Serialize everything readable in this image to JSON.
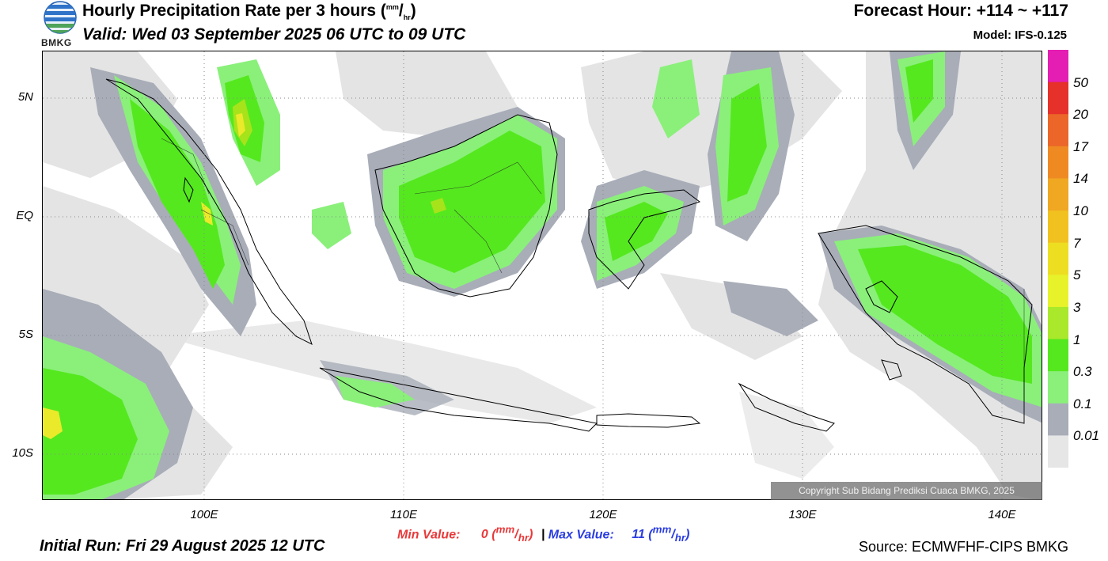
{
  "header": {
    "title_main": "Hourly Precipitation Rate per 3 hours (",
    "title_unit_top": "mm",
    "title_unit_bottom": "hr",
    "title_end": ")",
    "valid": "Valid: Wed 03 September 2025 06 UTC to 09 UTC",
    "forecast_hour": "Forecast Hour: +114 ~ +117",
    "model": "Model: IFS-0.125",
    "logo_text": "BMKG"
  },
  "map": {
    "lat_labels": [
      "5N",
      "EQ",
      "5S",
      "10S"
    ],
    "lon_labels": [
      "100E",
      "110E",
      "120E",
      "130E",
      "140E"
    ],
    "colors": {
      "light_gray": "#e4e4e4",
      "mid_gray": "#a8adb8",
      "light_green": "#8af07a",
      "green": "#55e81f",
      "yellow_green": "#a7e31a",
      "yellow": "#eaea2a",
      "orange": "#f1a31d"
    }
  },
  "colorbar": {
    "labels": [
      "50",
      "20",
      "17",
      "14",
      "10",
      "7",
      "5",
      "3",
      "1",
      "0.3",
      "0.1",
      "0.01"
    ],
    "colors": [
      "#e51eb3",
      "#e6302a",
      "#eb6628",
      "#ef8a23",
      "#f0a722",
      "#f1c21f",
      "#edde22",
      "#e7f22a",
      "#a9e82a",
      "#55e81f",
      "#8af07a",
      "#a8adb8",
      "#e6e6e6"
    ]
  },
  "footer": {
    "min_label": "Min Value:",
    "min_value": "0",
    "max_label": "Max Value:",
    "max_value": "11",
    "unit_top": "mm",
    "unit_bottom": "hr",
    "separator": "|",
    "initial_run": "Initial Run: Fri 29 August 2025 12 UTC",
    "source": "Source: ECMWFHF-CIPS BMKG",
    "copyright": "Copyright Sub Bidang Prediksi Cuaca BMKG, 2025"
  }
}
